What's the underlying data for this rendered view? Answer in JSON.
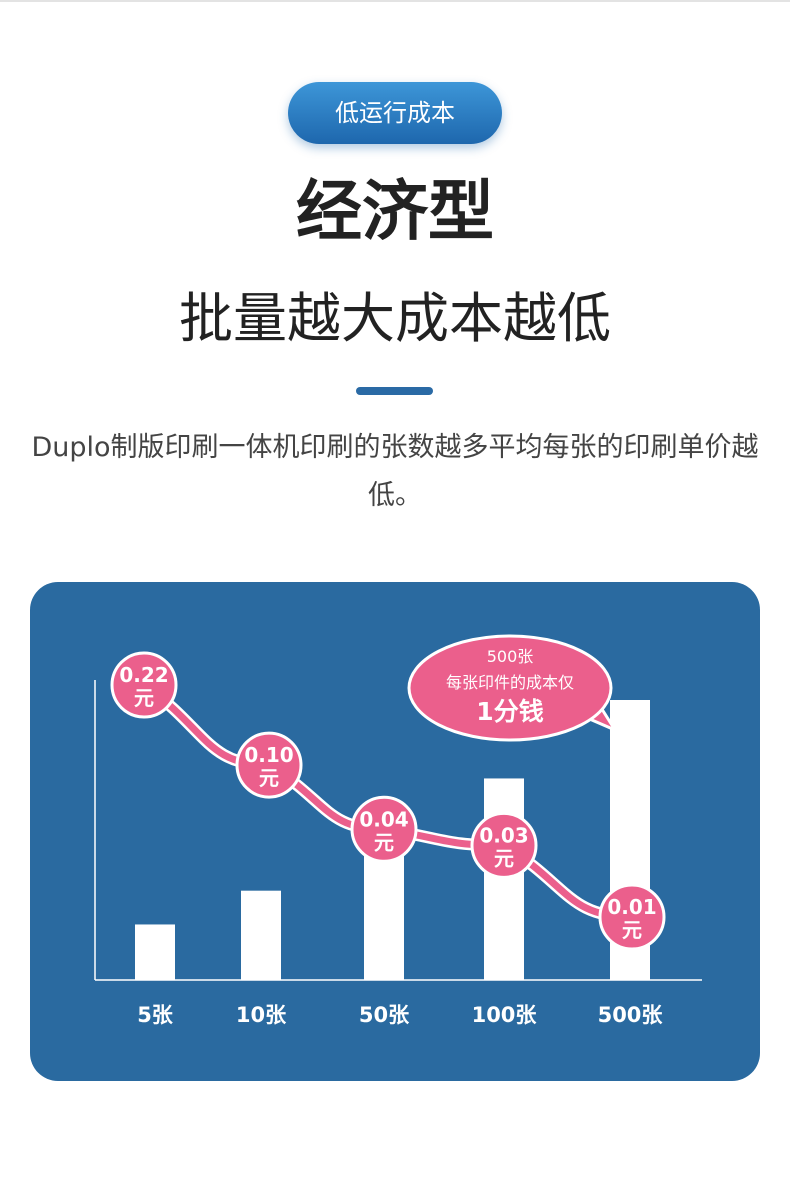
{
  "badge": "低运行成本",
  "title": "经济型",
  "subtitle": "批量越大成本越低",
  "description": "Duplo制版印刷一体机印刷的张数越多平均每张的印刷单价越低。",
  "colors": {
    "accent_blue": "#2a6aa0",
    "pill_blue": "#2e7ec6",
    "pink": "#eb5f8c",
    "white": "#ffffff"
  },
  "chart_data": {
    "type": "bar",
    "categories": [
      "5张",
      "10张",
      "50张",
      "100张",
      "500张"
    ],
    "series": [
      {
        "values": [
          5,
          10,
          50,
          100,
          500
        ]
      }
    ],
    "line_series": {
      "values": [
        0.22,
        0.1,
        0.04,
        0.03,
        0.01
      ],
      "labels": [
        "0.22\n元",
        "0.10\n元",
        "0.04\n元",
        "0.03\n元",
        "0.01\n元"
      ]
    },
    "callout": {
      "line1": "500张",
      "line2": "每张印件的成本仅",
      "line3": "1分钱"
    },
    "grid": false
  }
}
